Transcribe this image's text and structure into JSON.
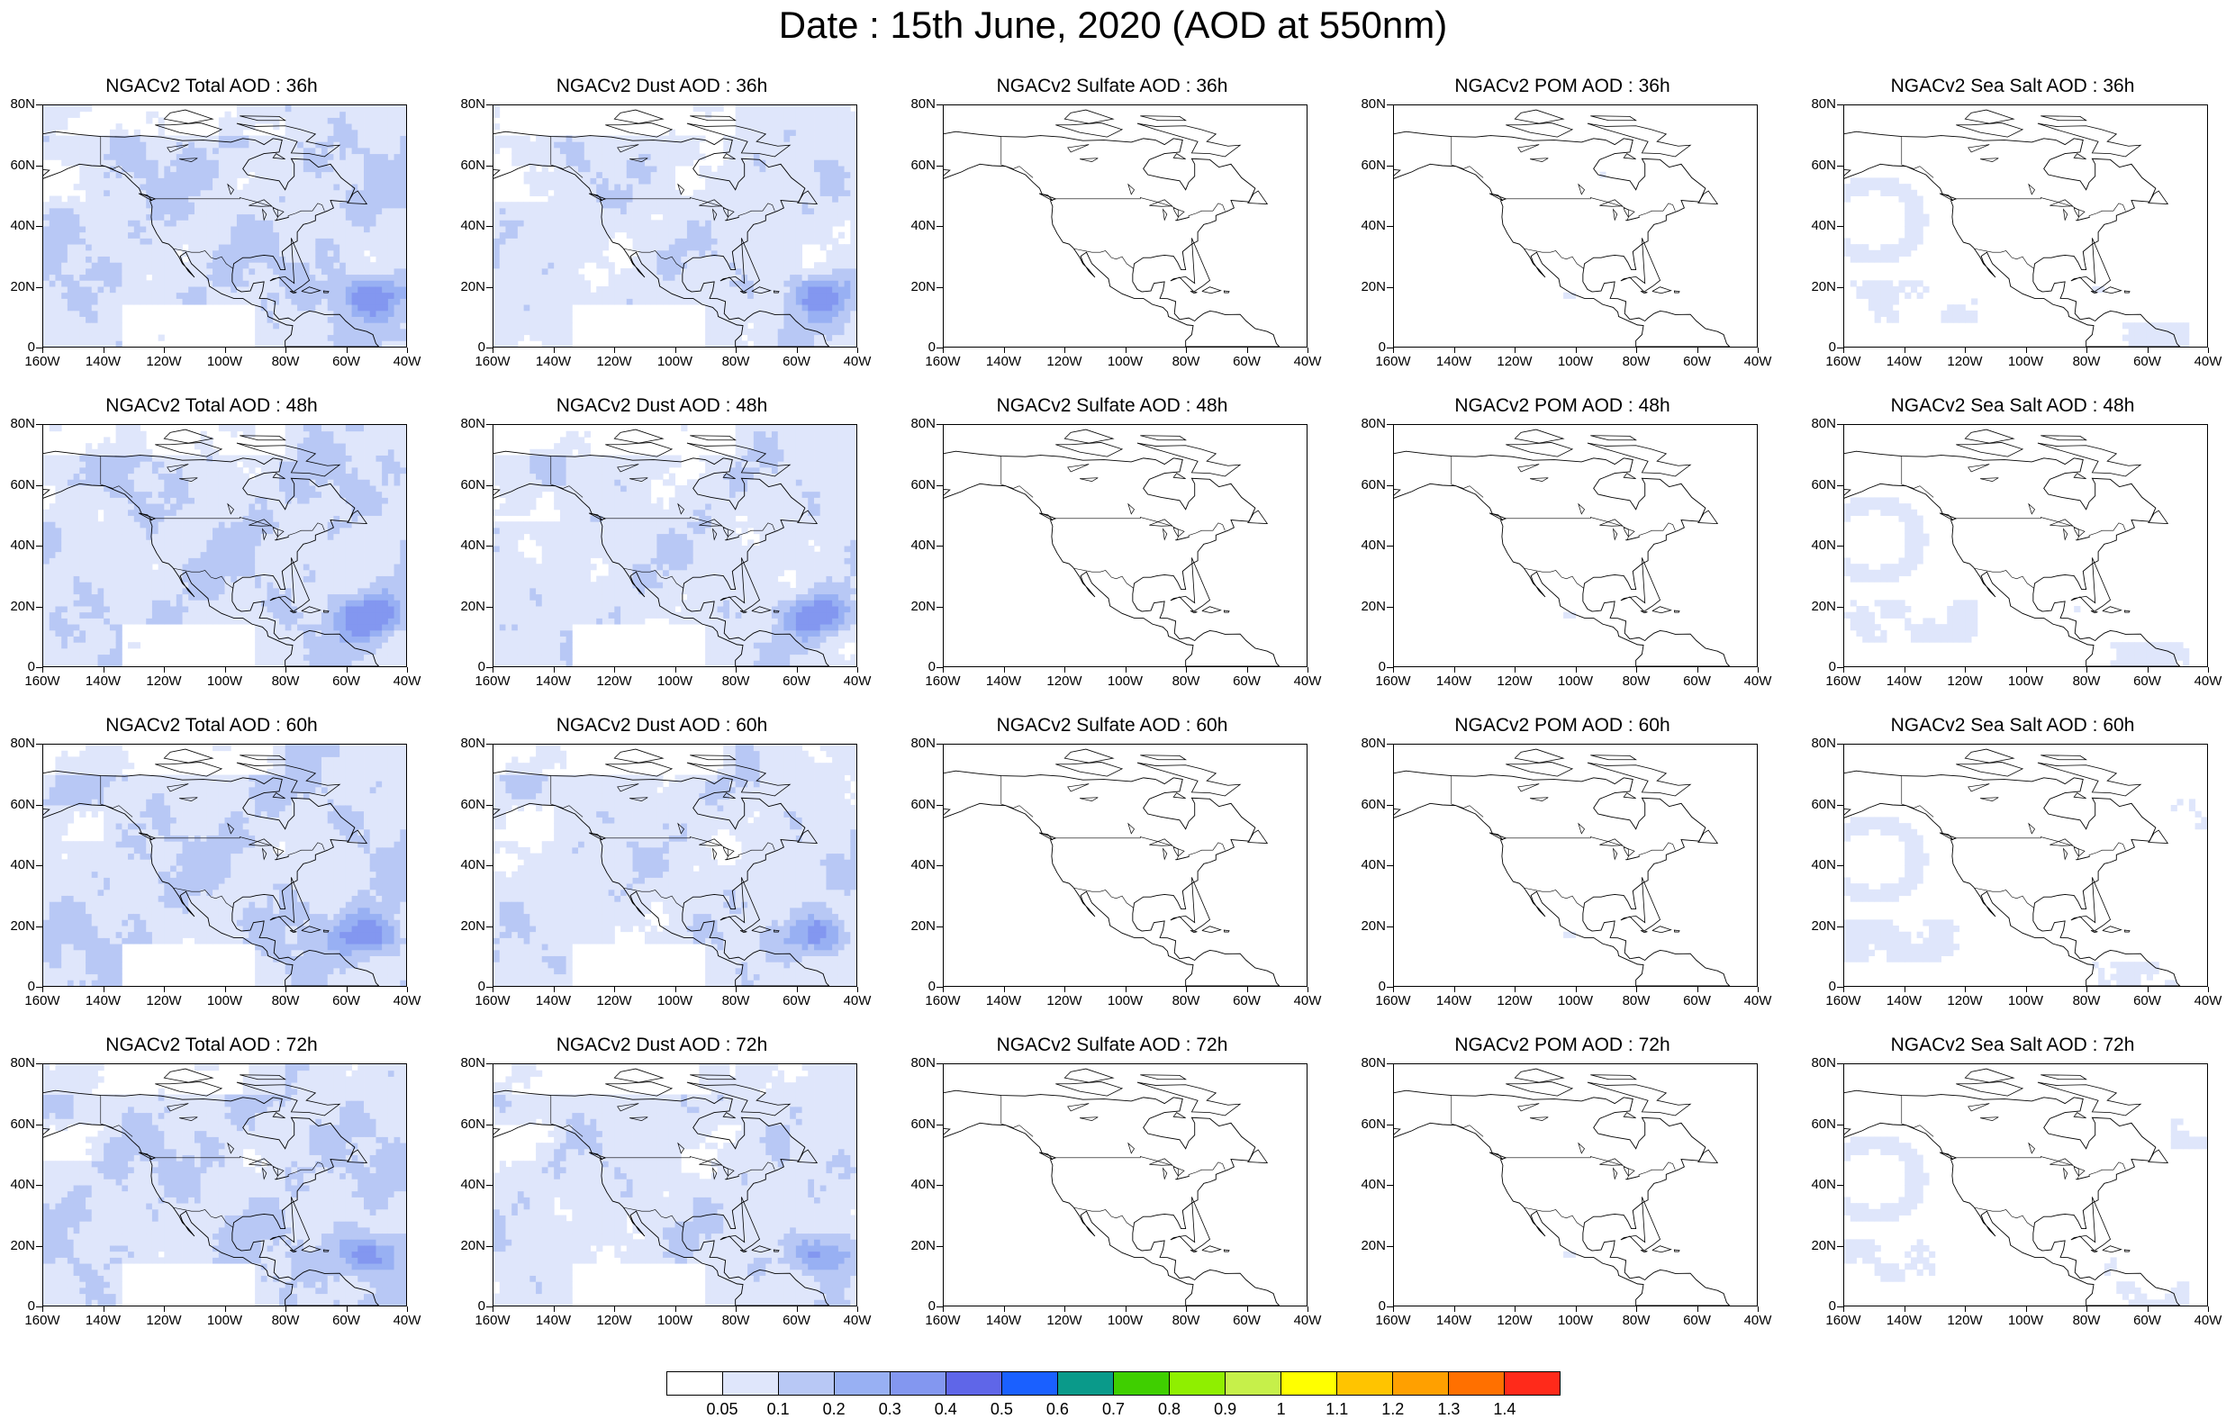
{
  "title": "Date : 15th June, 2020 (AOD at 550nm)",
  "rows": [
    {
      "panels": [
        {
          "title": "NGACv2 Total AOD : 36h",
          "species": "total"
        },
        {
          "title": "NGACv2 Dust AOD : 36h",
          "species": "dust"
        },
        {
          "title": "NGACv2 Sulfate AOD : 36h",
          "species": "sulfate"
        },
        {
          "title": "NGACv2 POM AOD : 36h",
          "species": "pom"
        },
        {
          "title": "NGACv2 Sea Salt AOD : 36h",
          "species": "seasalt"
        }
      ]
    },
    {
      "panels": [
        {
          "title": "NGACv2 Total AOD : 48h",
          "species": "total"
        },
        {
          "title": "NGACv2 Dust AOD : 48h",
          "species": "dust"
        },
        {
          "title": "NGACv2 Sulfate AOD : 48h",
          "species": "sulfate"
        },
        {
          "title": "NGACv2 POM AOD : 48h",
          "species": "pom"
        },
        {
          "title": "NGACv2 Sea Salt AOD : 48h",
          "species": "seasalt"
        }
      ]
    },
    {
      "panels": [
        {
          "title": "NGACv2 Total AOD : 60h",
          "species": "total"
        },
        {
          "title": "NGACv2 Dust AOD : 60h",
          "species": "dust"
        },
        {
          "title": "NGACv2 Sulfate AOD : 60h",
          "species": "sulfate"
        },
        {
          "title": "NGACv2 POM AOD : 60h",
          "species": "pom"
        },
        {
          "title": "NGACv2 Sea Salt AOD : 60h",
          "species": "seasalt"
        }
      ]
    },
    {
      "panels": [
        {
          "title": "NGACv2 Total AOD : 72h",
          "species": "total"
        },
        {
          "title": "NGACv2 Dust AOD : 72h",
          "species": "dust"
        },
        {
          "title": "NGACv2 Sulfate AOD : 72h",
          "species": "sulfate"
        },
        {
          "title": "NGACv2 POM AOD : 72h",
          "species": "pom"
        },
        {
          "title": "NGACv2 Sea Salt  AOD : 72h",
          "species": "seasalt"
        }
      ]
    }
  ],
  "lat_ticks": [
    "80N",
    "60N",
    "40N",
    "20N",
    "0"
  ],
  "lon_ticks": [
    "160W",
    "140W",
    "120W",
    "100W",
    "80W",
    "60W",
    "40W"
  ],
  "colorbar": {
    "labels": [
      "0.05",
      "0.1",
      "0.2",
      "0.3",
      "0.4",
      "0.5",
      "0.6",
      "0.7",
      "0.8",
      "0.9",
      "1",
      "1.1",
      "1.2",
      "1.3",
      "1.4"
    ],
    "colors": [
      "#ffffff",
      "#dfe6fb",
      "#b8c8f5",
      "#98b0f3",
      "#8397f0",
      "#5f66e8",
      "#1a60ff",
      "#0a9a8a",
      "#3fcf00",
      "#8fef00",
      "#c6f04a",
      "#ffff00",
      "#ffc400",
      "#ffa000",
      "#ff7000",
      "#ff2a1a"
    ]
  }
}
